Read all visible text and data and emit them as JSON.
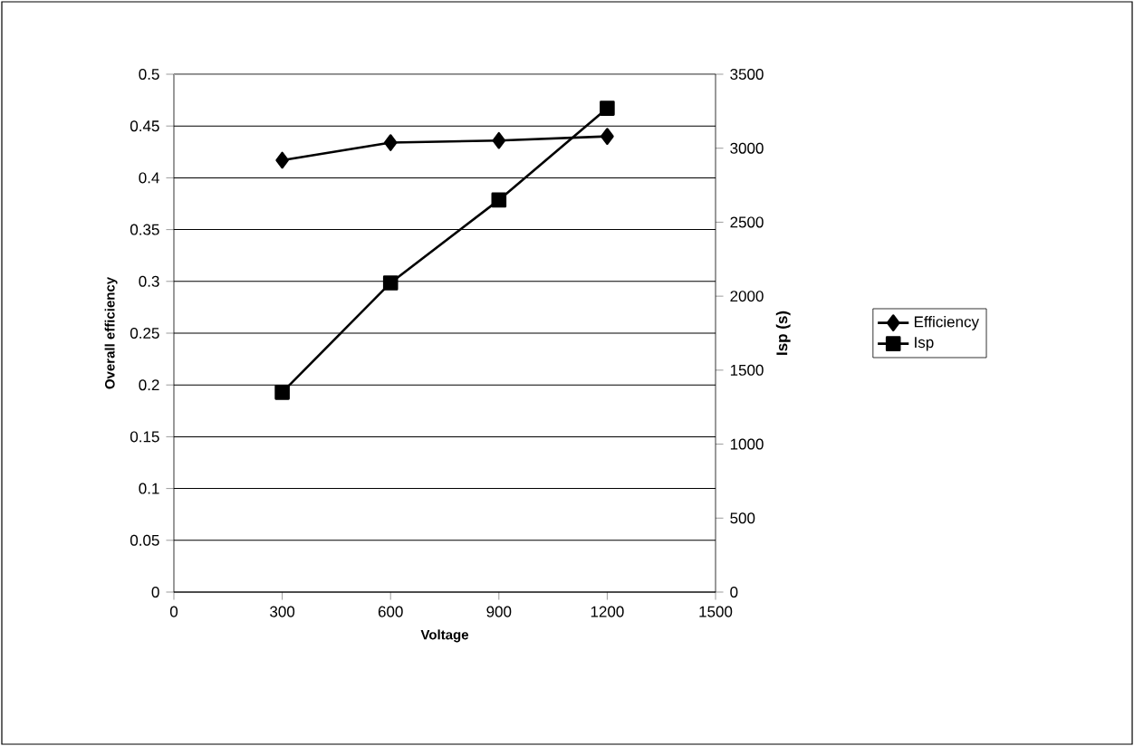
{
  "chart_data": {
    "type": "line",
    "xlabel": "Voltage",
    "ylabel": "Overall efficiency",
    "y2label": "Isp (s)",
    "xlim": [
      0,
      1500
    ],
    "xticks": [
      0,
      300,
      600,
      900,
      1200,
      1500
    ],
    "ylim": [
      0,
      0.5
    ],
    "yticks": [
      0,
      0.05,
      0.1,
      0.15,
      0.2,
      0.25,
      0.3,
      0.35,
      0.4,
      0.45,
      0.5
    ],
    "y2lim": [
      0,
      3500
    ],
    "y2ticks": [
      0,
      500,
      1000,
      1500,
      2000,
      2500,
      3000,
      3500
    ],
    "grid": "y",
    "legend": "right",
    "line_style": "solid",
    "series": [
      {
        "name": "Efficiency",
        "color": "#000000",
        "marker": "diamond",
        "x": [
          300,
          600,
          900,
          1200
        ],
        "values": [
          0.417,
          0.434,
          0.436,
          0.44
        ]
      },
      {
        "name": "Isp",
        "color": "#000000",
        "marker": "square",
        "axis": "y2",
        "x": [
          300,
          600,
          900,
          1200
        ],
        "values": [
          1350,
          2090,
          2650,
          3270
        ]
      }
    ]
  }
}
